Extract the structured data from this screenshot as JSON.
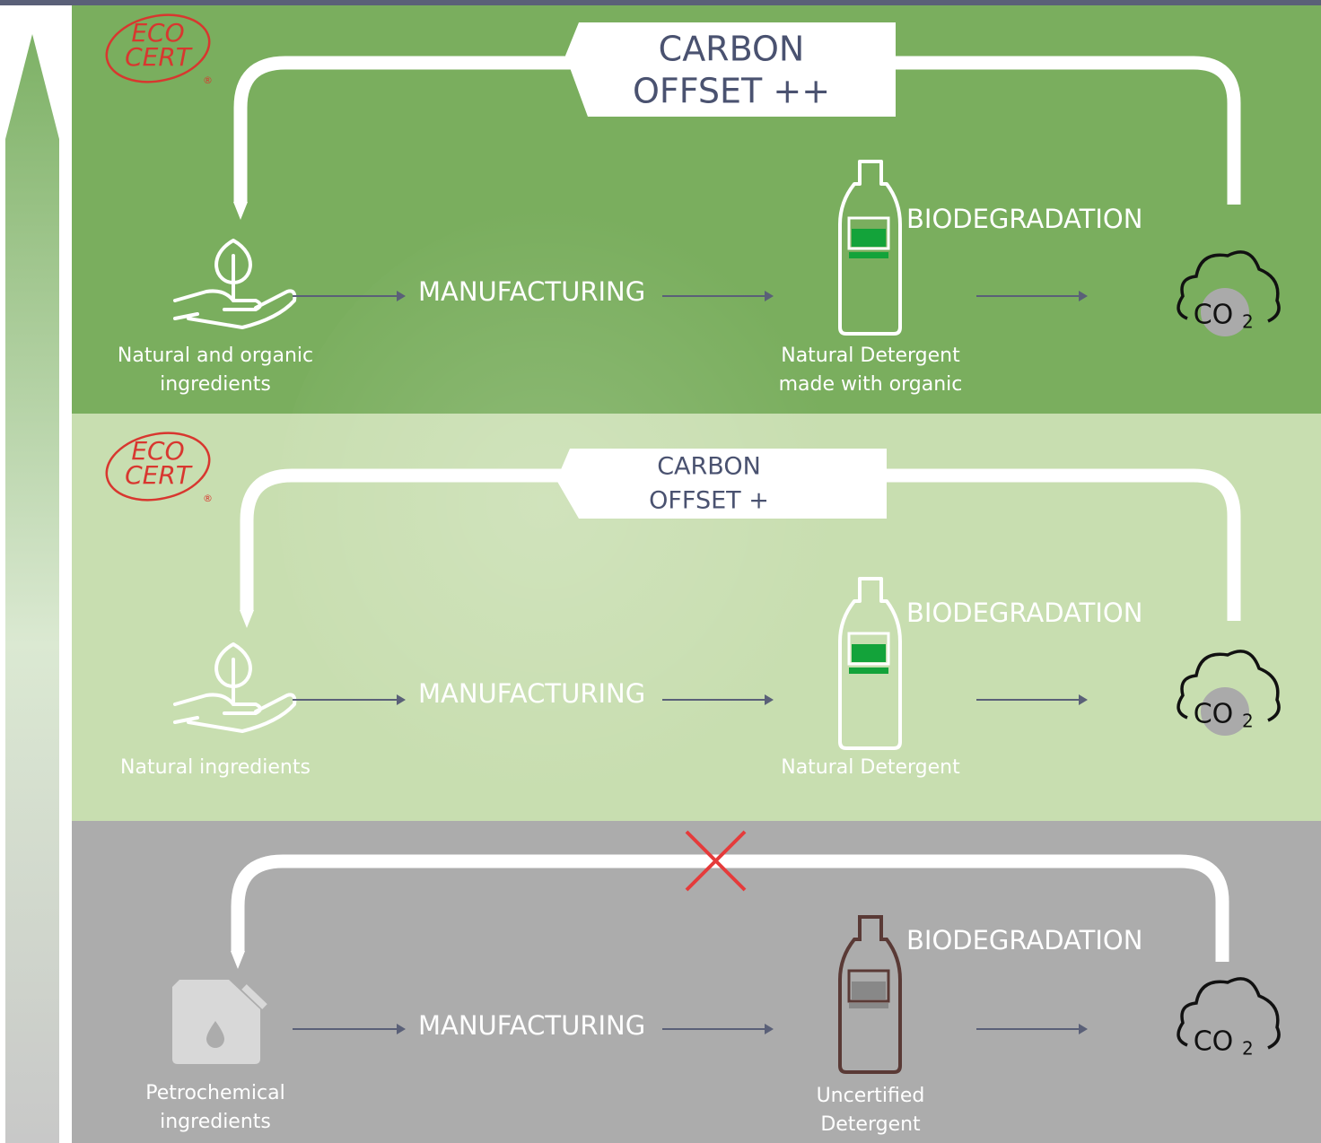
{
  "panels": [
    {
      "logo": {
        "line1": "ECO",
        "line2": "CERT",
        "mark": "®"
      },
      "offset": [
        "CARBON",
        "OFFSET ++"
      ],
      "source": [
        "Natural and organic",
        "ingredients"
      ],
      "process": "MANUFACTURING",
      "product": [
        "Natural Detergent",
        "made with organic"
      ],
      "end_process": "BIODEGRADATION",
      "co2": {
        "text": "CO",
        "sub": "2"
      }
    },
    {
      "logo": {
        "line1": "ECO",
        "line2": "CERT",
        "mark": "®"
      },
      "offset": [
        "CARBON",
        "OFFSET +"
      ],
      "source": [
        "Natural ingredients"
      ],
      "process": "MANUFACTURING",
      "product": [
        "Natural Detergent"
      ],
      "end_process": "BIODEGRADATION",
      "co2": {
        "text": "CO",
        "sub": "2"
      }
    },
    {
      "source": [
        "Petrochemical",
        "ingredients"
      ],
      "process": "MANUFACTURING",
      "product": [
        "Uncertified",
        "Detergent"
      ],
      "end_process": "BIODEGRADATION",
      "co2": {
        "text": "CO",
        "sub": "2"
      }
    }
  ]
}
